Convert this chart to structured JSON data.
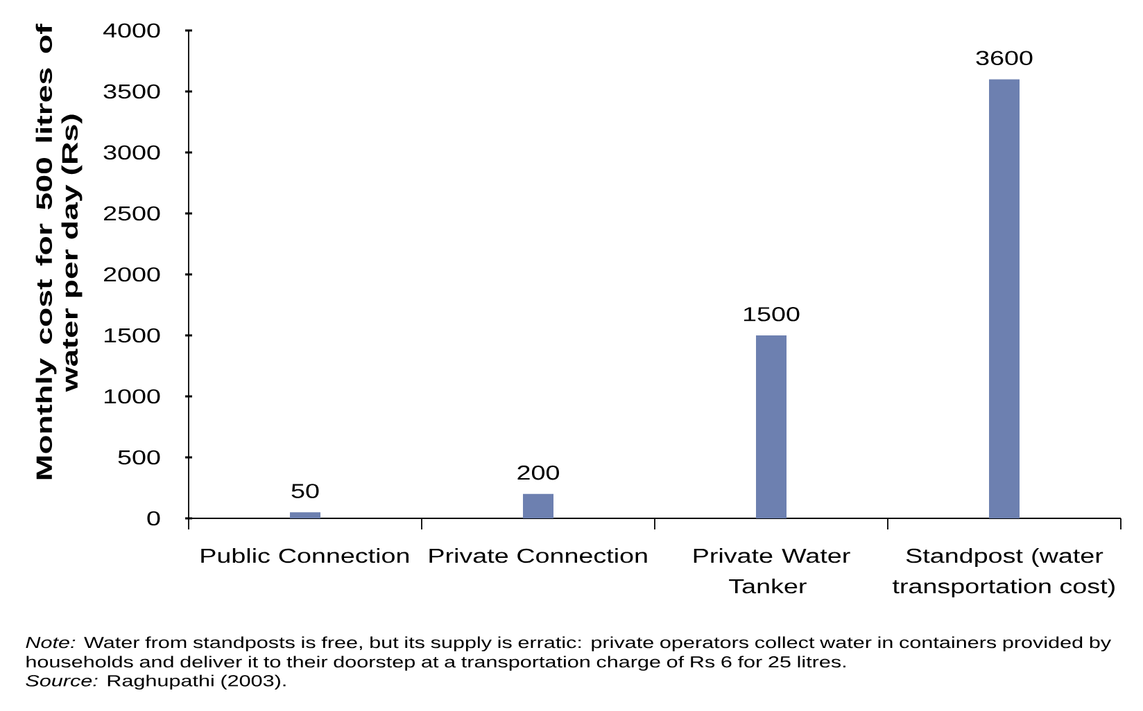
{
  "chart_data": {
    "type": "bar",
    "categories": [
      "Public Connection",
      "Private Connection",
      "Private Water Tanker",
      "Standpost (water transportation cost)"
    ],
    "values": [
      50,
      200,
      1500,
      3600
    ],
    "color": "#6d80b0",
    "ylabel": "Monthly cost for 500 litres of water per day (Rs)",
    "ylim": [
      0,
      4000
    ],
    "yticks": [
      0,
      500,
      1000,
      1500,
      2000,
      2500,
      3000,
      3500,
      4000
    ],
    "data_labels": true,
    "annotations": [
      "*Note:* Water from standposts is free, but its supply is erratic: private operators collect water in containers provided by households and deliver it to their doorstep at a transportation charge of Rs 6 for 25 litres.",
      "*Source:* Raghupathi (2003)."
    ]
  }
}
